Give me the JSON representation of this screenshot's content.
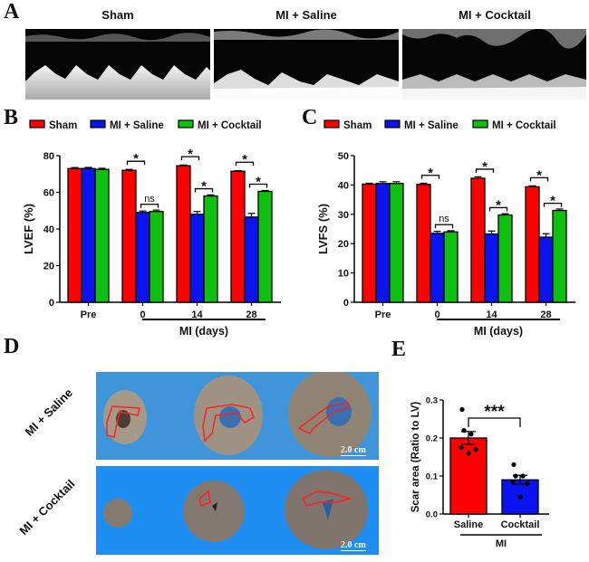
{
  "panels": {
    "A": {
      "letter": "A",
      "titles": [
        "Sham",
        "MI + Saline",
        "MI + Cocktail"
      ]
    },
    "B": {
      "letter": "B"
    },
    "C": {
      "letter": "C"
    },
    "D": {
      "letter": "D",
      "row_labels": [
        "MI + Saline",
        "MI + Cocktail"
      ],
      "scale_bar": "2.0 cm"
    },
    "E": {
      "letter": "E"
    }
  },
  "colors": {
    "sham": "#ff0000",
    "saline": "#0a14f0",
    "cocktail": "#10c010",
    "photo_bg": "#2f8ee0",
    "tissue": "#8a7f74",
    "scar_outline": "#ff2020"
  },
  "chart_data": [
    {
      "id": "B",
      "type": "bar",
      "title": "",
      "legend": [
        "Sham",
        "MI + Saline",
        "MI + Cocktail"
      ],
      "legend_position": "top",
      "categories": [
        "Pre",
        "0",
        "14",
        "28"
      ],
      "xlabel": "MI (days)",
      "ylabel": "LVEF (%)",
      "ylim": [
        0,
        80
      ],
      "yticks": [
        0,
        20,
        40,
        60,
        80
      ],
      "series": [
        {
          "name": "Sham",
          "values": [
            73,
            72,
            74.5,
            71.5
          ],
          "errors": [
            0.5,
            0.5,
            0.4,
            0.3
          ]
        },
        {
          "name": "MI + Saline",
          "values": [
            73,
            49,
            48,
            46.5
          ],
          "errors": [
            0.6,
            0.8,
            1.5,
            2
          ]
        },
        {
          "name": "MI + Cocktail",
          "values": [
            72.5,
            49.5,
            58,
            60.5
          ],
          "errors": [
            0.6,
            0.8,
            0.6,
            0.5
          ]
        }
      ],
      "significance": [
        {
          "group": 1,
          "pair": [
            0,
            1
          ],
          "label": "*"
        },
        {
          "group": 1,
          "pair": [
            1,
            2
          ],
          "label": "ns"
        },
        {
          "group": 2,
          "pair": [
            0,
            1
          ],
          "label": "*"
        },
        {
          "group": 2,
          "pair": [
            1,
            2
          ],
          "label": "*"
        },
        {
          "group": 3,
          "pair": [
            0,
            1
          ],
          "label": "*"
        },
        {
          "group": 3,
          "pair": [
            1,
            2
          ],
          "label": "*"
        }
      ]
    },
    {
      "id": "C",
      "type": "bar",
      "title": "",
      "legend": [
        "Sham",
        "MI + Saline",
        "MI + Cocktail"
      ],
      "legend_position": "top",
      "categories": [
        "Pre",
        "0",
        "14",
        "28"
      ],
      "xlabel": "MI (days)",
      "ylabel": "LVFS (%)",
      "ylim": [
        0,
        50
      ],
      "yticks": [
        0,
        10,
        20,
        30,
        40,
        50
      ],
      "series": [
        {
          "name": "Sham",
          "values": [
            40.3,
            40.2,
            42.3,
            39.4
          ],
          "errors": [
            0.3,
            0.4,
            0.5,
            0.3
          ]
        },
        {
          "name": "MI + Saline",
          "values": [
            40.5,
            23.5,
            23.3,
            22.2
          ],
          "errors": [
            0.6,
            0.7,
            1.0,
            1.2
          ]
        },
        {
          "name": "MI + Cocktail",
          "values": [
            40.5,
            24,
            29.8,
            31.3
          ],
          "errors": [
            0.6,
            0.4,
            0.4,
            0.5
          ]
        }
      ],
      "significance": [
        {
          "group": 1,
          "pair": [
            0,
            1
          ],
          "label": "*"
        },
        {
          "group": 1,
          "pair": [
            1,
            2
          ],
          "label": "ns"
        },
        {
          "group": 2,
          "pair": [
            0,
            1
          ],
          "label": "*"
        },
        {
          "group": 2,
          "pair": [
            1,
            2
          ],
          "label": "*"
        },
        {
          "group": 3,
          "pair": [
            0,
            1
          ],
          "label": "*"
        },
        {
          "group": 3,
          "pair": [
            1,
            2
          ],
          "label": "*"
        }
      ]
    },
    {
      "id": "E",
      "type": "bar",
      "title": "",
      "categories": [
        "Saline",
        "Cocktail"
      ],
      "xlabel": "MI",
      "ylabel": "Scar area (Ratio to LV)",
      "ylim": [
        0,
        0.3
      ],
      "yticks": [
        "0.0",
        "0.1",
        "0.2",
        "0.3"
      ],
      "values": [
        0.2,
        0.09
      ],
      "errors": [
        0.017,
        0.012
      ],
      "points": [
        [
          0.275,
          0.22,
          0.21,
          0.175,
          0.17,
          0.16
        ],
        [
          0.13,
          0.1,
          0.1,
          0.085,
          0.08,
          0.045
        ]
      ],
      "significance": [
        {
          "pair": [
            0,
            1
          ],
          "label": "***"
        }
      ]
    }
  ]
}
